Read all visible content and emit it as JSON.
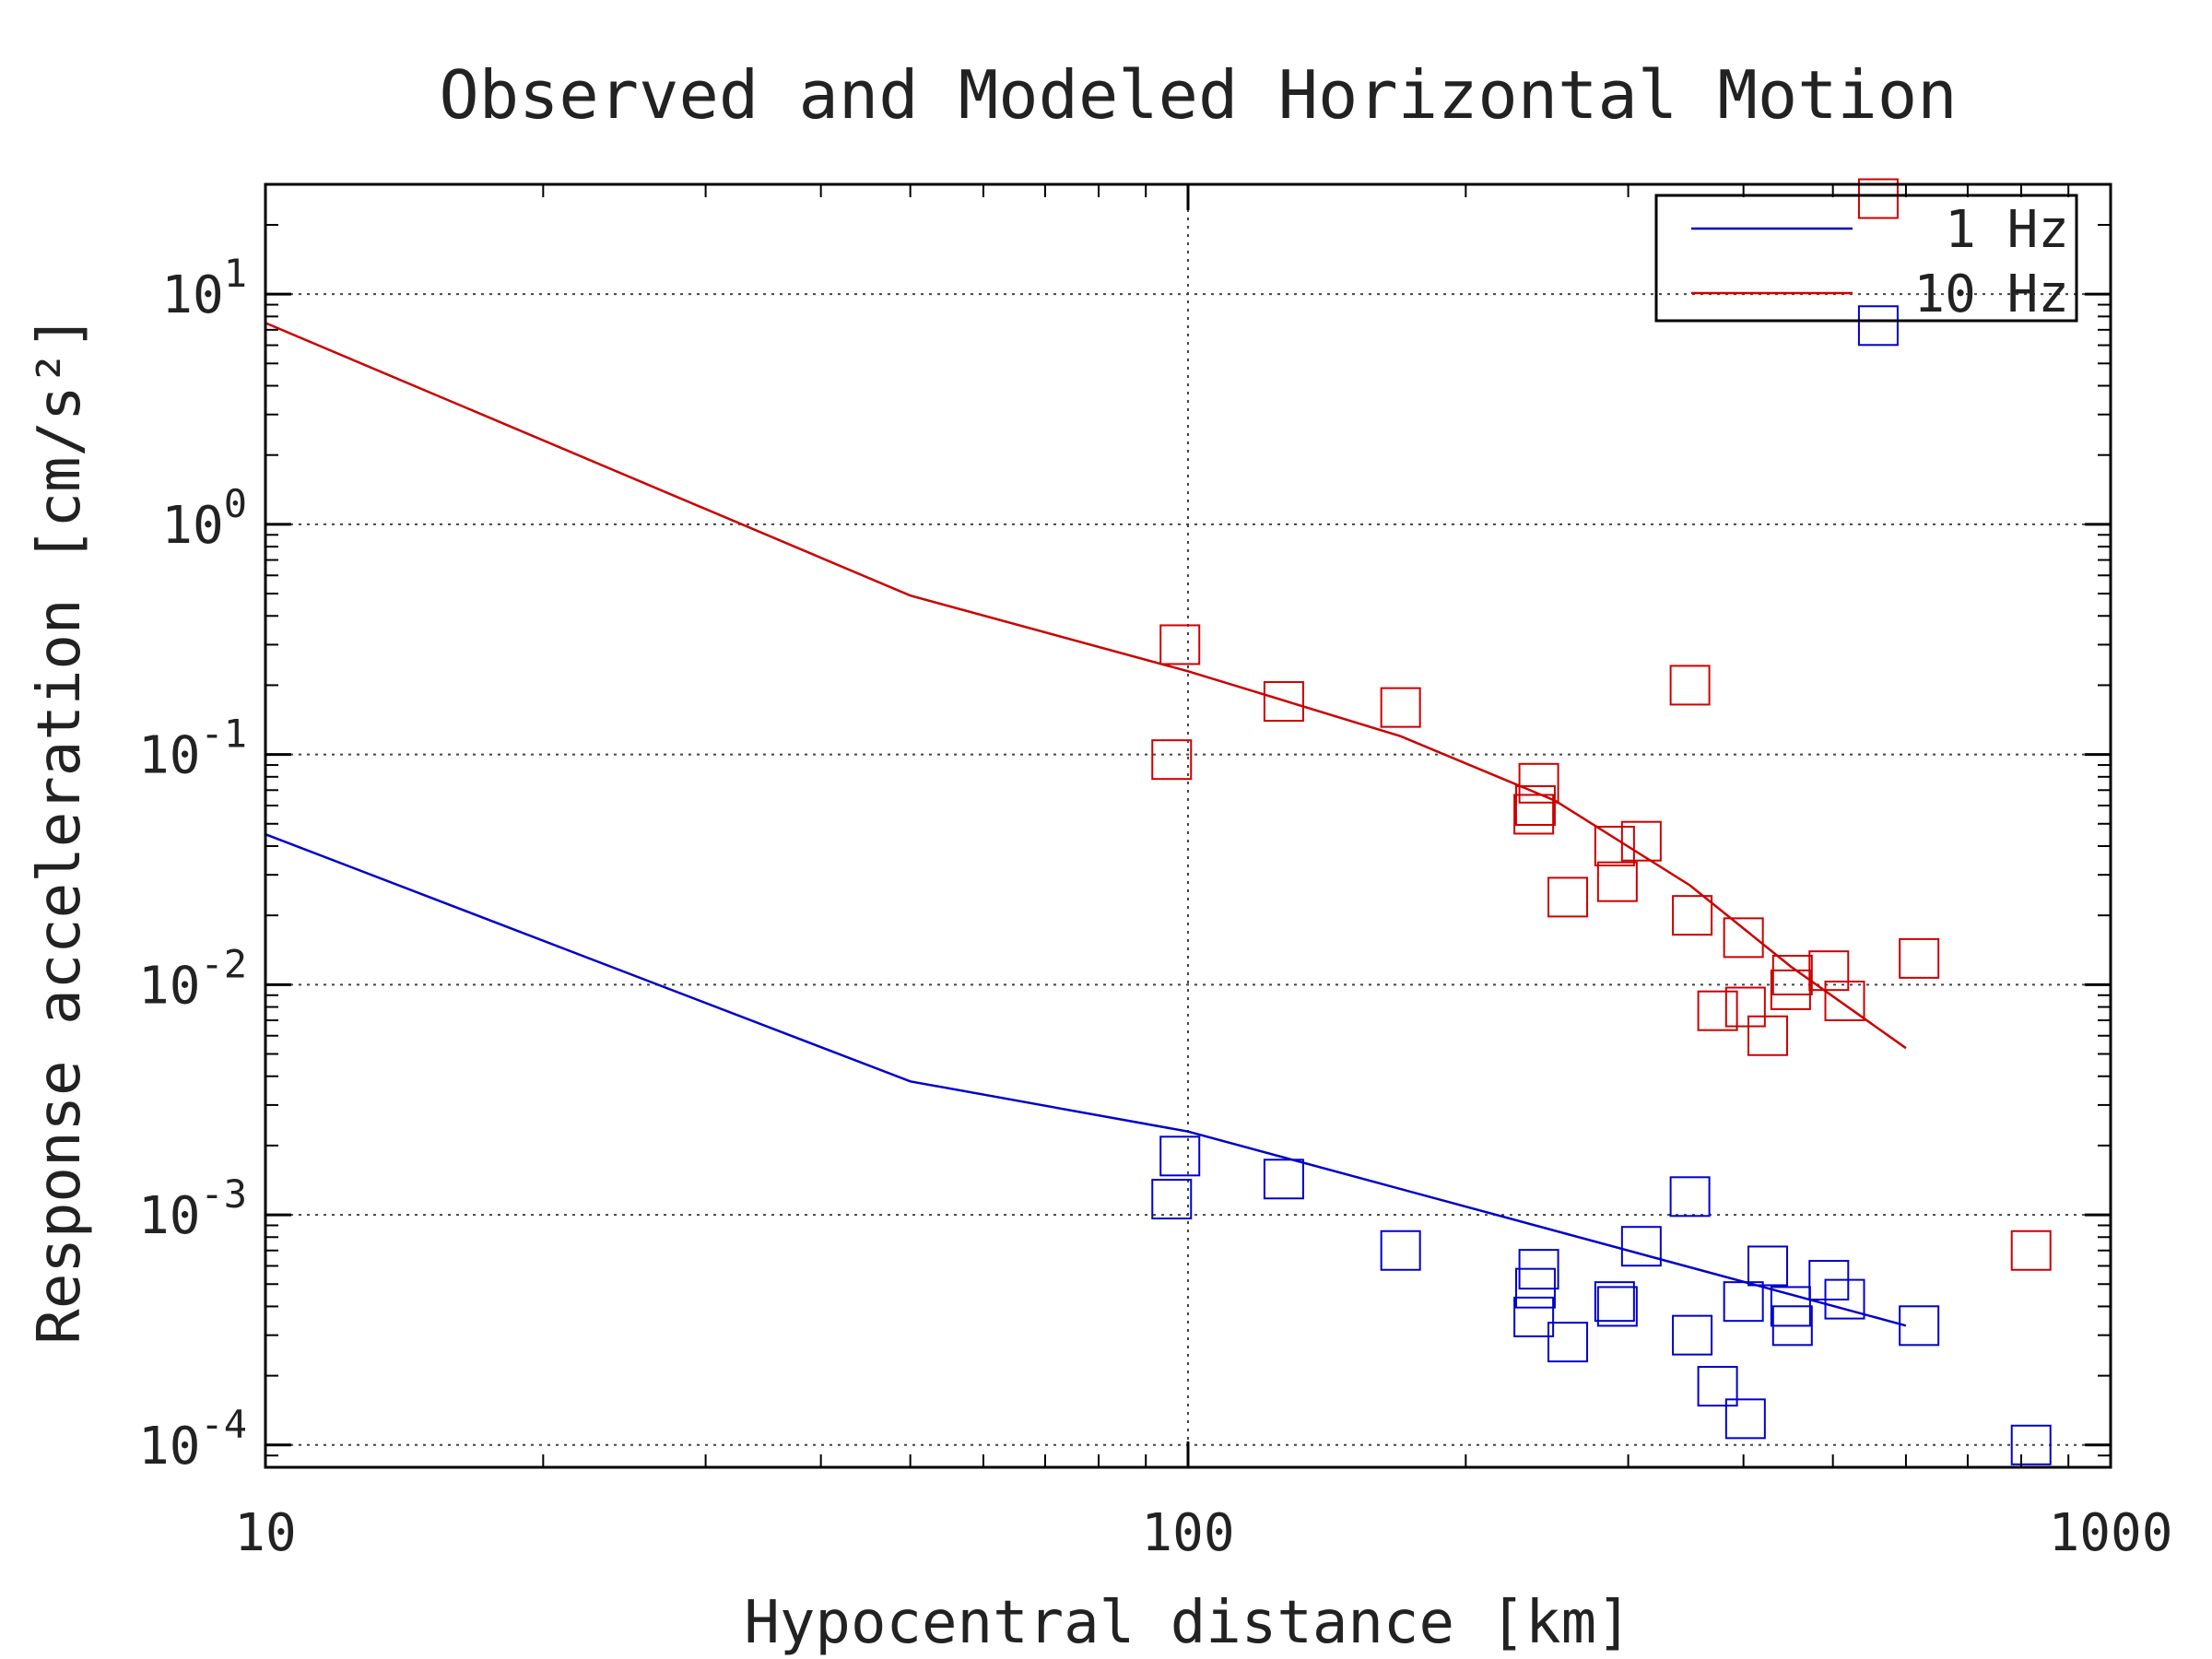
{
  "chart_data": {
    "type": "scatter",
    "title": "Observed and Modeled Horizontal Motion",
    "xlabel": "Hypocentral distance [km]",
    "ylabel": "Response acceleration [cm/s²]",
    "x_scale": "log",
    "y_scale": "log",
    "xlim": [
      10,
      1000
    ],
    "ylim": [
      8e-05,
      30
    ],
    "x_ticks": [
      {
        "value": 10,
        "label": "10"
      },
      {
        "value": 100,
        "label": "100"
      },
      {
        "value": 1000,
        "label": "1000"
      }
    ],
    "y_ticks": [
      {
        "value": 0.0001,
        "base": "10",
        "exp": "-4"
      },
      {
        "value": 0.001,
        "base": "10",
        "exp": "-3"
      },
      {
        "value": 0.01,
        "base": "10",
        "exp": "-2"
      },
      {
        "value": 0.1,
        "base": "10",
        "exp": "-1"
      },
      {
        "value": 1,
        "base": "10",
        "exp": "0"
      },
      {
        "value": 10,
        "base": "10",
        "exp": "1"
      }
    ],
    "grid": true,
    "legend_position": "top-right",
    "series": [
      {
        "name": "1 Hz",
        "color": "#0000cc",
        "model": [
          [
            10,
            0.045
          ],
          [
            50,
            0.0038
          ],
          [
            100,
            0.0023
          ],
          [
            600,
            0.00033
          ]
        ],
        "observed": [
          [
            96,
            0.00117
          ],
          [
            98,
            0.0018
          ],
          [
            127,
            0.00143
          ],
          [
            170,
            0.0007
          ],
          [
            237,
            0.00036
          ],
          [
            238,
            0.00048
          ],
          [
            240,
            0.00058
          ],
          [
            258,
            0.00028
          ],
          [
            290,
            0.00042
          ],
          [
            292,
            0.0004
          ],
          [
            310,
            0.00073
          ],
          [
            350,
            0.0012
          ],
          [
            352,
            0.0003
          ],
          [
            375,
            0.00018
          ],
          [
            400,
            0.00042
          ],
          [
            402,
            0.00013
          ],
          [
            425,
            0.0006
          ],
          [
            450,
            0.0004
          ],
          [
            452,
            0.00033
          ],
          [
            495,
            0.00052
          ],
          [
            515,
            0.00043
          ],
          [
            560,
            7.3
          ],
          [
            620,
            0.00033
          ],
          [
            820,
            0.0001
          ]
        ]
      },
      {
        "name": "10 Hz",
        "color": "#cc0000",
        "model": [
          [
            10,
            7.5
          ],
          [
            50,
            0.49
          ],
          [
            100,
            0.23
          ],
          [
            170,
            0.12
          ],
          [
            250,
            0.063
          ],
          [
            350,
            0.027
          ],
          [
            450,
            0.012
          ],
          [
            600,
            0.0053
          ]
        ],
        "observed": [
          [
            96,
            0.095
          ],
          [
            98,
            0.3
          ],
          [
            127,
            0.17
          ],
          [
            170,
            0.16
          ],
          [
            237,
            0.055
          ],
          [
            238,
            0.06
          ],
          [
            240,
            0.075
          ],
          [
            258,
            0.024
          ],
          [
            290,
            0.04
          ],
          [
            292,
            0.028
          ],
          [
            310,
            0.042
          ],
          [
            350,
            0.2
          ],
          [
            352,
            0.02
          ],
          [
            375,
            0.0077
          ],
          [
            400,
            0.016
          ],
          [
            402,
            0.008
          ],
          [
            425,
            0.006
          ],
          [
            450,
            0.0095
          ],
          [
            452,
            0.011
          ],
          [
            495,
            0.0115
          ],
          [
            515,
            0.0085
          ],
          [
            560,
            26
          ],
          [
            620,
            0.013
          ],
          [
            820,
            0.0007
          ]
        ]
      }
    ]
  }
}
